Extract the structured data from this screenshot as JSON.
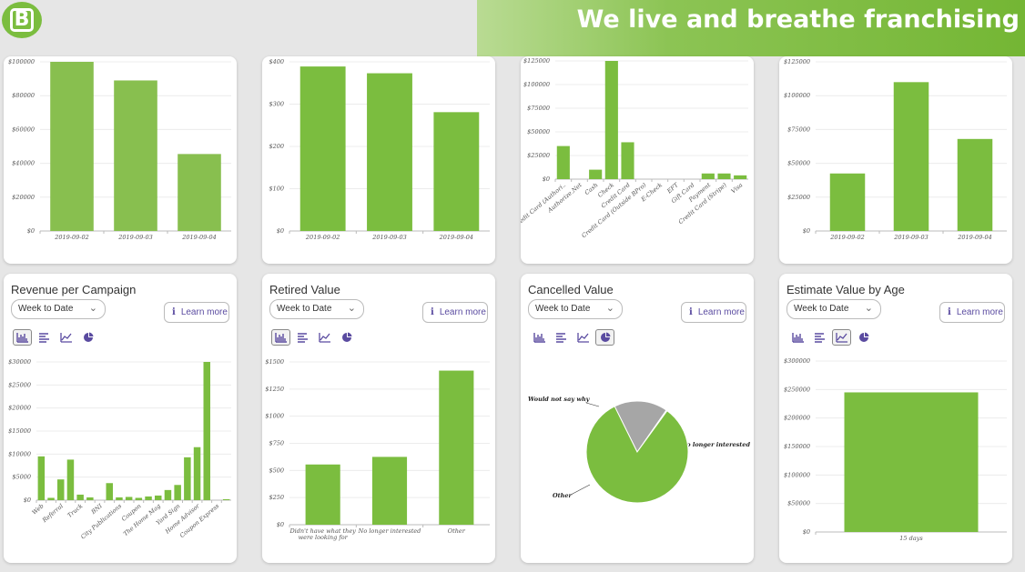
{
  "header": {
    "logo_letter": "B",
    "tagline": "We live and breathe franchising"
  },
  "colors": {
    "bar": "#7bbd3f",
    "accent": "#5a4ba0",
    "pie_other": "#7bbd3f",
    "pie_grey": "#a6a6a6"
  },
  "top_charts": [
    {
      "chart_data": {
        "type": "bar",
        "categories": [
          "2019-09-02",
          "2019-09-03",
          "2019-09-04"
        ],
        "values": [
          100000,
          89000,
          45500
        ],
        "ylim": [
          0,
          100000
        ],
        "yticks": [
          "$0",
          "$20000",
          "$40000",
          "$60000",
          "$80000",
          "$100000"
        ]
      }
    },
    {
      "chart_data": {
        "type": "bar",
        "categories": [
          "2019-09-02",
          "2019-09-03",
          "2019-09-04"
        ],
        "values": [
          389,
          373,
          281
        ],
        "ylim": [
          0,
          400
        ],
        "yticks": [
          "$0",
          "$100",
          "$200",
          "$300",
          "$400"
        ]
      }
    },
    {
      "chart_data": {
        "type": "bar",
        "categories": [
          "Credit Card (Authori..",
          "Authorize.Net",
          "Cash",
          "Check",
          "Credit Card",
          "Credit Card (Outside BPro)",
          "E-Check",
          "EFT",
          "Gift Card",
          "Payment",
          "Credit Card (Stripe)",
          "Visa"
        ],
        "values": [
          35000,
          0,
          10000,
          125000,
          39000,
          0,
          0,
          0,
          0,
          6000,
          6000,
          4000
        ],
        "ylim": [
          0,
          125000
        ],
        "yticks": [
          "$0",
          "$25000",
          "$50000",
          "$75000",
          "$100000",
          "$125000"
        ]
      }
    },
    {
      "chart_data": {
        "type": "bar",
        "categories": [
          "2019-09-02",
          "2019-09-03",
          "2019-09-04"
        ],
        "values": [
          42500,
          110000,
          68000
        ],
        "ylim": [
          0,
          125000
        ],
        "yticks": [
          "$0",
          "$25000",
          "$50000",
          "$75000",
          "$100000",
          "$125000"
        ]
      }
    }
  ],
  "cards": [
    {
      "title": "Revenue per Campaign",
      "period": "Week to Date",
      "learn_more": "Learn more",
      "active_tool": 0,
      "chart_data": {
        "type": "bar",
        "categories": [
          "Web",
          "",
          "Referral",
          "",
          "Truck",
          "",
          "BNI",
          "",
          "City Publications",
          "",
          "Coupon",
          "",
          "The Home Mag",
          "",
          "Yard Sign",
          "",
          "Home Advisor",
          "",
          "Coupon Express",
          ""
        ],
        "values": [
          9500,
          500,
          4500,
          8800,
          1200,
          600,
          0,
          3700,
          600,
          700,
          500,
          800,
          1000,
          2200,
          3300,
          9300,
          11500,
          30000,
          0,
          200
        ],
        "ylim": [
          0,
          30000
        ],
        "yticks": [
          "$0",
          "$5000",
          "$10000",
          "$15000",
          "$20000",
          "$25000",
          "$30000"
        ]
      }
    },
    {
      "title": "Retired Value",
      "period": "Week to Date",
      "learn_more": "Learn more",
      "active_tool": 0,
      "chart_data": {
        "type": "bar",
        "categories": [
          "Didn't have what they were looking for",
          "No longer interested",
          "Other"
        ],
        "category_lines": [
          [
            "Didn't have what they",
            "were looking for"
          ],
          [
            "No longer interested"
          ],
          [
            "Other"
          ]
        ],
        "values": [
          555,
          625,
          1420
        ],
        "ylim": [
          0,
          1500
        ],
        "yticks": [
          "$0",
          "$250",
          "$500",
          "$750",
          "$1000",
          "$1250",
          "$1500"
        ]
      }
    },
    {
      "title": "Cancelled Value",
      "period": "Week to Date",
      "learn_more": "Learn more",
      "active_tool": 3,
      "chart_data": {
        "type": "pie",
        "labels": [
          "Would not say why",
          "No longer interested",
          "Other"
        ],
        "values": [
          17,
          0.3,
          82.7
        ]
      }
    },
    {
      "title": "Estimate Value by Age",
      "period": "Week to Date",
      "learn_more": "Learn more",
      "active_tool": 2,
      "chart_data": {
        "type": "bar",
        "categories": [
          "15 days"
        ],
        "values": [
          245000
        ],
        "ylim": [
          0,
          300000
        ],
        "yticks": [
          "$0",
          "$50000",
          "$100000",
          "$150000",
          "$200000",
          "$250000",
          "$300000"
        ]
      }
    }
  ],
  "tool_icons": [
    "bar-chart-icon",
    "horizontal-bar-icon",
    "line-chart-icon",
    "pie-chart-icon"
  ]
}
